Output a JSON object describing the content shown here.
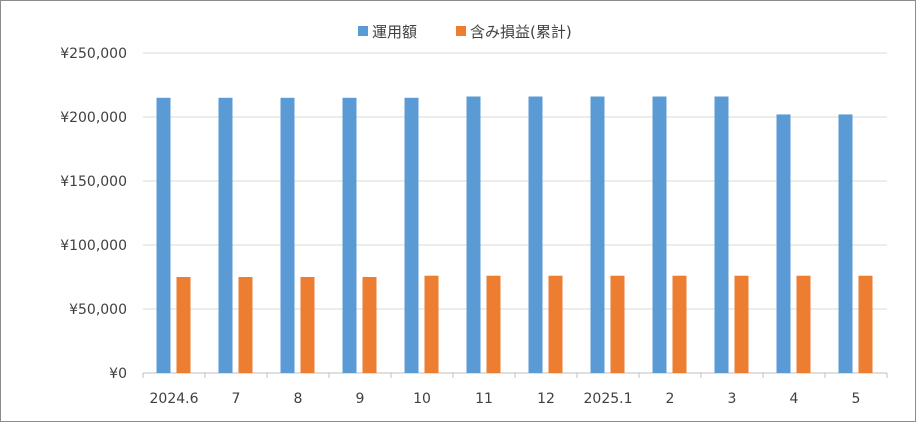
{
  "chart_data": {
    "type": "bar",
    "categories": [
      "2024.6",
      "7",
      "8",
      "9",
      "10",
      "11",
      "12",
      "2025.1",
      "2",
      "3",
      "4",
      "5"
    ],
    "series": [
      {
        "name": "運用額",
        "color": "#5b9bd5",
        "values": [
          215000,
          215000,
          215000,
          215000,
          215000,
          216000,
          216000,
          216000,
          216000,
          216000,
          202000,
          202000
        ]
      },
      {
        "name": "含み損益(累計)",
        "color": "#ed7d31",
        "values": [
          75000,
          75000,
          75000,
          75000,
          76000,
          76000,
          76000,
          76000,
          76000,
          76000,
          76000,
          76000
        ]
      }
    ],
    "yticks": [
      "¥0",
      "¥50,000",
      "¥100,000",
      "¥150,000",
      "¥200,000",
      "¥250,000"
    ],
    "ylim": [
      0,
      250000
    ],
    "grid": true,
    "legend_position": "top"
  }
}
